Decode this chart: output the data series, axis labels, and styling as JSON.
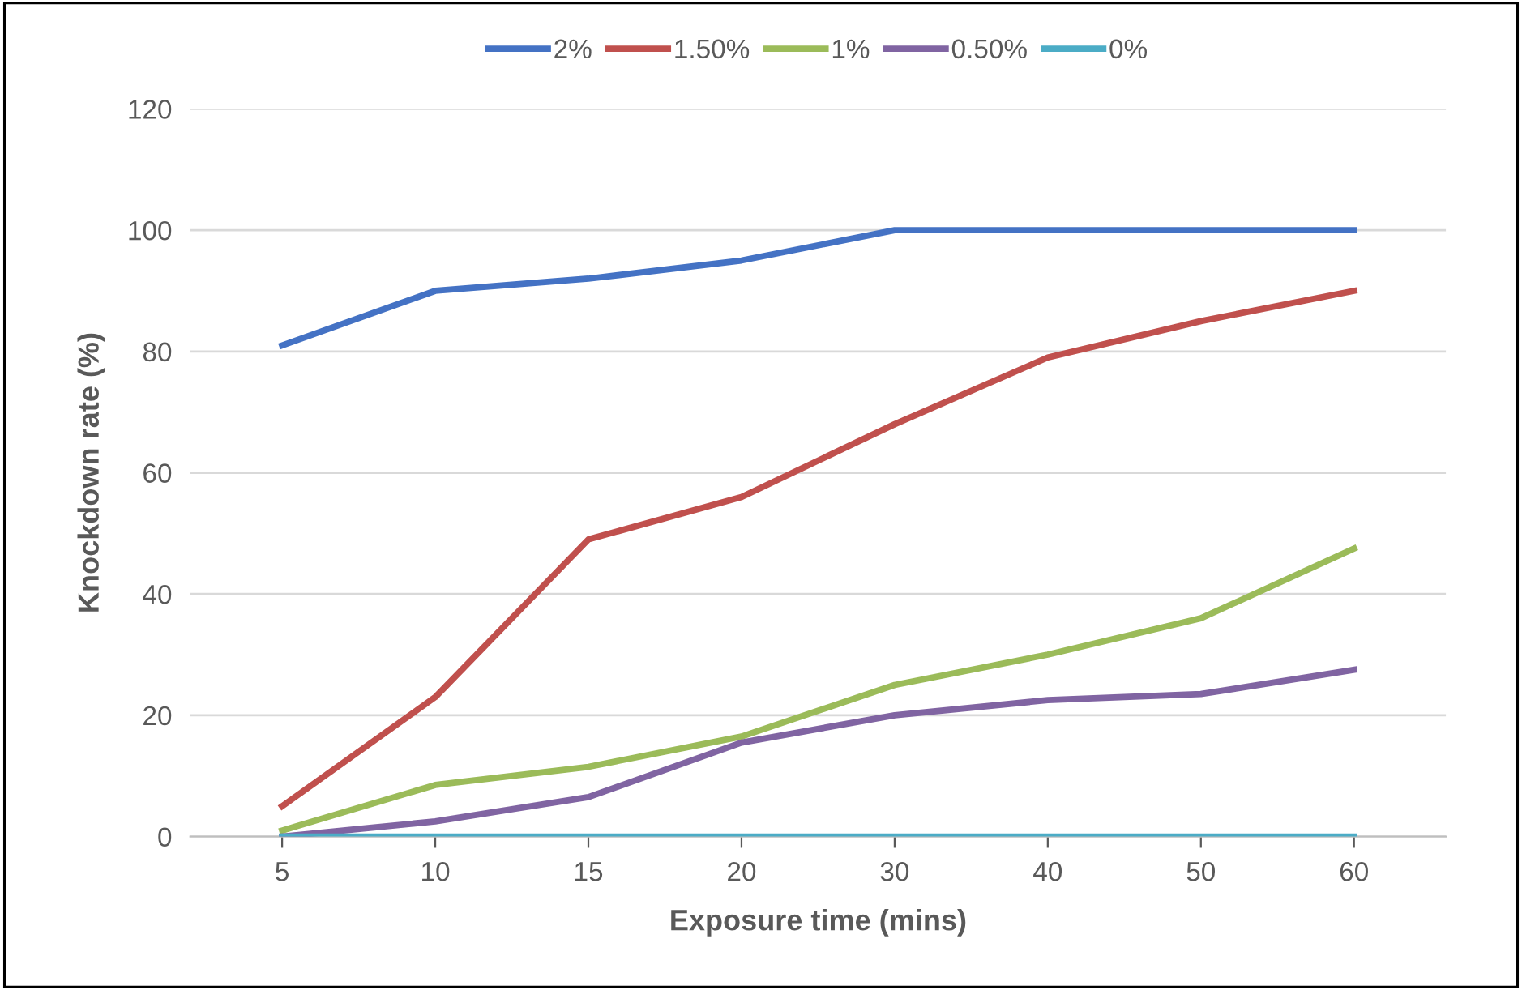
{
  "chart_data": {
    "type": "line",
    "xlabel": "Exposure time (mins)",
    "ylabel": "Knockdown rate (%)",
    "categories": [
      "5",
      "10",
      "15",
      "20",
      "30",
      "40",
      "50",
      "60"
    ],
    "series": [
      {
        "name": "2%",
        "color": "#4472c4",
        "values": [
          81,
          90,
          92,
          95,
          100,
          100,
          100,
          100
        ]
      },
      {
        "name": "1.50%",
        "color": "#c0504d",
        "values": [
          5,
          23,
          49,
          56,
          68,
          79,
          85,
          90
        ]
      },
      {
        "name": "1%",
        "color": "#9bbb59",
        "values": [
          1,
          8.5,
          11.5,
          16.5,
          25,
          30,
          36,
          47.5
        ]
      },
      {
        "name": "0.50%",
        "color": "#8064a2",
        "values": [
          0,
          2.5,
          6.5,
          15.5,
          20,
          22.5,
          23.5,
          27.5
        ]
      },
      {
        "name": "0%",
        "color": "#4bacc6",
        "values": [
          0,
          0,
          0,
          0,
          0,
          0,
          0,
          0
        ]
      }
    ],
    "ylim": [
      0,
      120
    ],
    "yticks": [
      0,
      20,
      40,
      60,
      80,
      100,
      120
    ],
    "grid": "y",
    "legend": "top",
    "marker": "none",
    "line_style": "solid"
  }
}
